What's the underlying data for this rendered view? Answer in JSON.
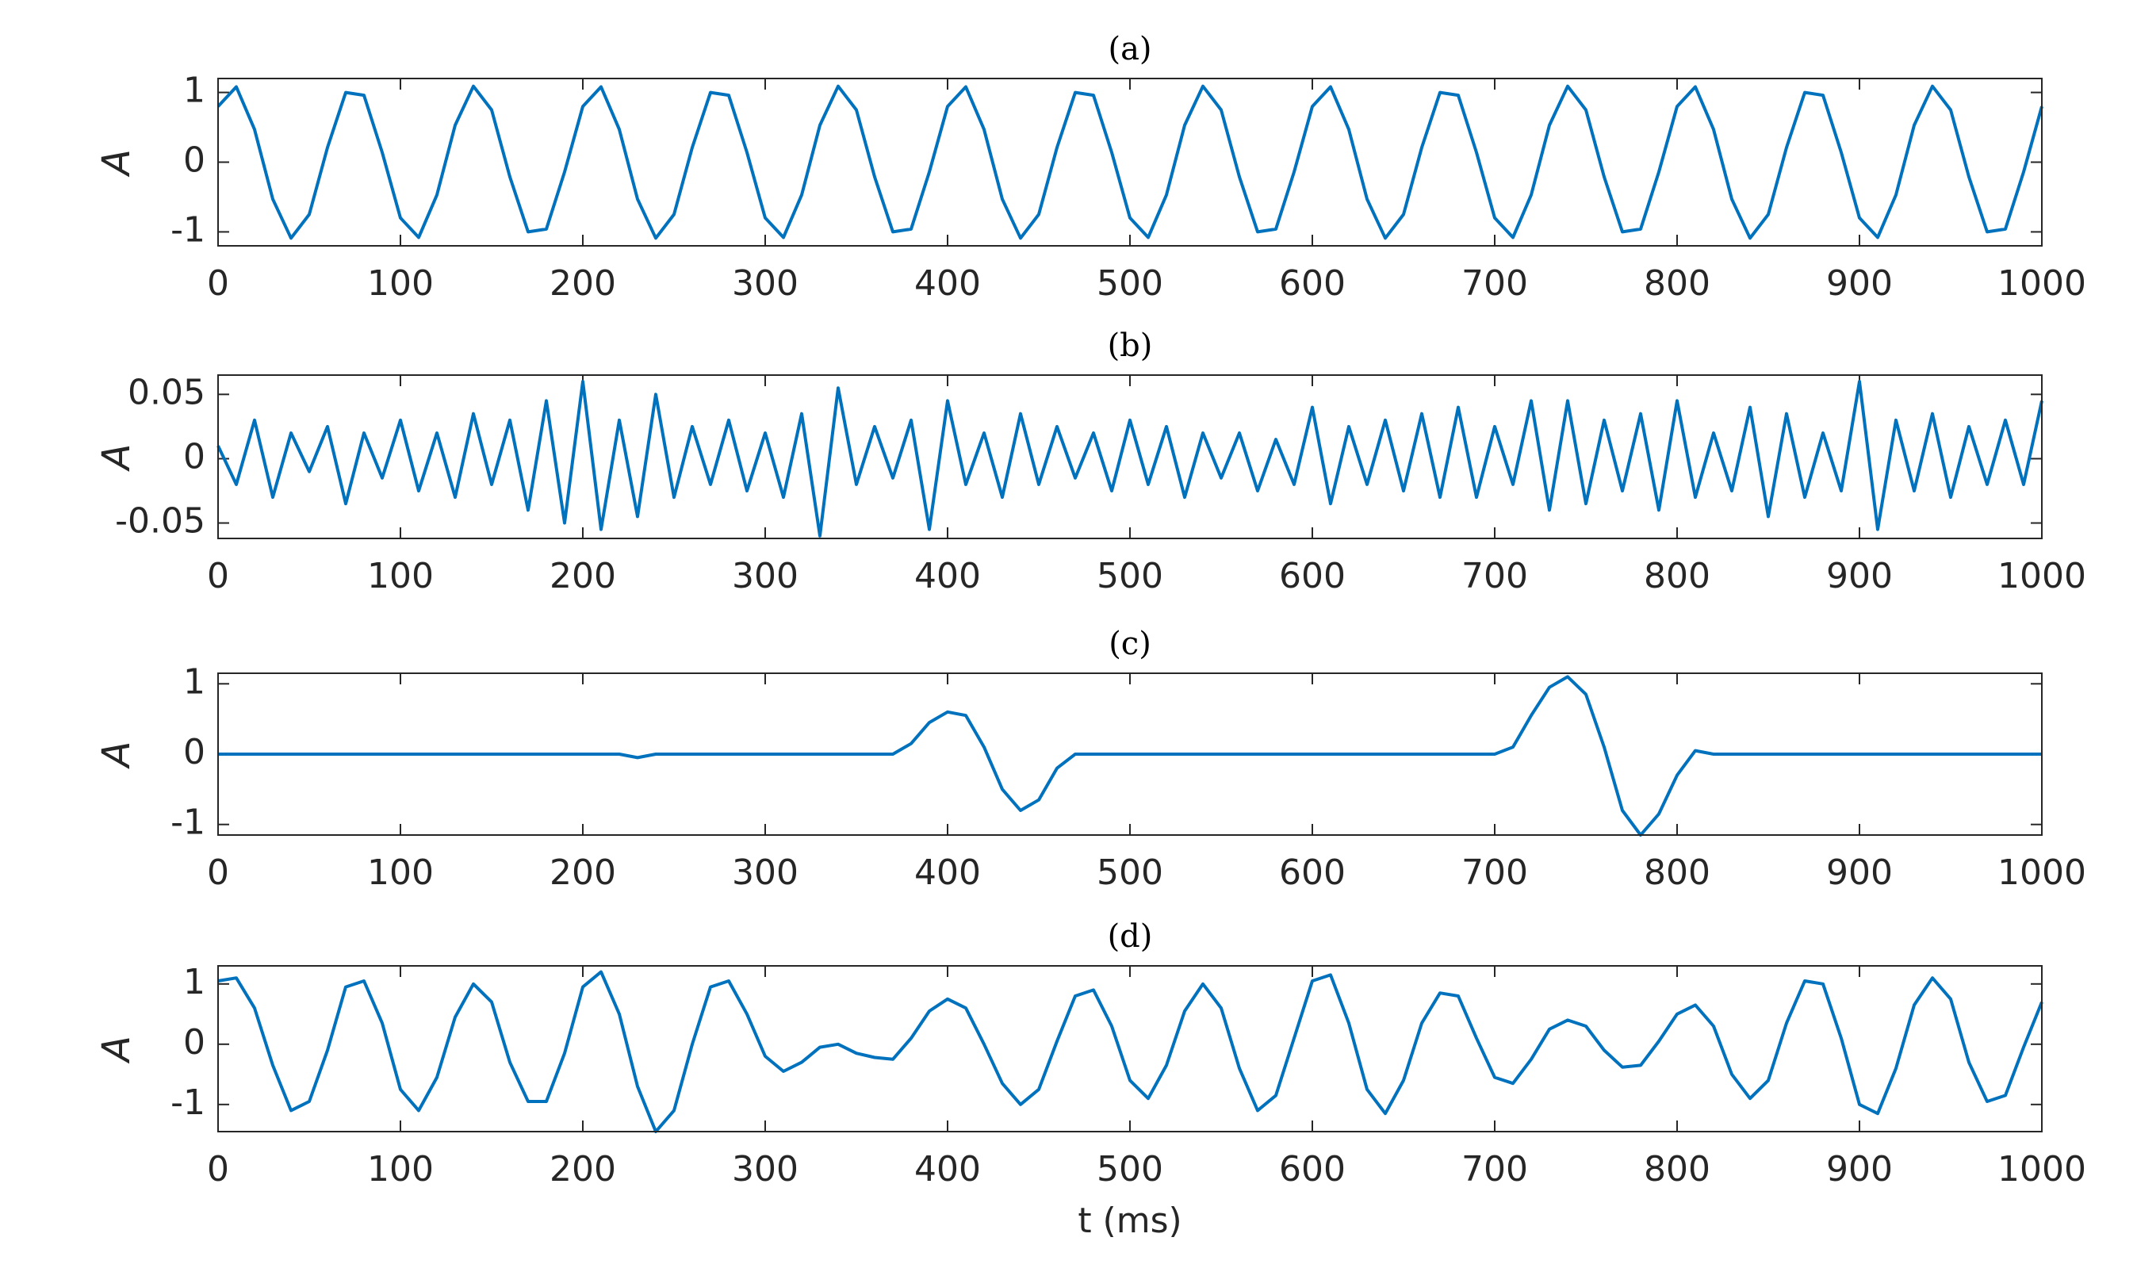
{
  "chart_data": [
    {
      "type": "line",
      "title": "(a)",
      "y_label": "A",
      "xlim": [
        0,
        1000
      ],
      "xticks": [
        0,
        100,
        200,
        300,
        400,
        500,
        600,
        700,
        800,
        900,
        1000
      ],
      "ylim": [
        -1.2,
        1.2
      ],
      "yticks": [
        -1,
        0,
        1
      ],
      "color": "#0072bd",
      "x": [
        0,
        10,
        20,
        30,
        40,
        50,
        60,
        70,
        80,
        90,
        100,
        110,
        120,
        130,
        140,
        150,
        160,
        170,
        180,
        190,
        200,
        210,
        220,
        230,
        240,
        250,
        260,
        270,
        280,
        290,
        300,
        310,
        320,
        330,
        340,
        350,
        360,
        370,
        380,
        390,
        400,
        410,
        420,
        430,
        440,
        450,
        460,
        470,
        480,
        490,
        500,
        510,
        520,
        530,
        540,
        550,
        560,
        570,
        580,
        590,
        600,
        610,
        620,
        630,
        640,
        650,
        660,
        670,
        680,
        690,
        700,
        710,
        720,
        730,
        740,
        750,
        760,
        770,
        780,
        790,
        800,
        810,
        820,
        830,
        840,
        850,
        860,
        870,
        880,
        890,
        900,
        910,
        920,
        930,
        940,
        950,
        960,
        970,
        980,
        990,
        1000
      ],
      "values": [
        0.8,
        1.08,
        0.47,
        -0.53,
        -1.09,
        -0.75,
        0.21,
        1.0,
        0.96,
        0.14,
        -0.8,
        -1.08,
        -0.47,
        0.53,
        1.09,
        0.75,
        -0.21,
        -1.0,
        -0.96,
        -0.14,
        0.8,
        1.08,
        0.47,
        -0.53,
        -1.09,
        -0.75,
        0.21,
        1.0,
        0.96,
        0.14,
        -0.8,
        -1.08,
        -0.47,
        0.53,
        1.09,
        0.75,
        -0.21,
        -1.0,
        -0.96,
        -0.14,
        0.8,
        1.08,
        0.47,
        -0.53,
        -1.09,
        -0.75,
        0.21,
        1.0,
        0.96,
        0.14,
        -0.8,
        -1.08,
        -0.47,
        0.53,
        1.09,
        0.75,
        -0.21,
        -1.0,
        -0.96,
        -0.14,
        0.8,
        1.08,
        0.47,
        -0.53,
        -1.09,
        -0.75,
        0.21,
        1.0,
        0.96,
        0.14,
        -0.8,
        -1.08,
        -0.47,
        0.53,
        1.09,
        0.75,
        -0.21,
        -1.0,
        -0.96,
        -0.14,
        0.8,
        1.08,
        0.47,
        -0.53,
        -1.09,
        -0.75,
        0.21,
        1.0,
        0.96,
        0.14,
        -0.8,
        -1.08,
        -0.47,
        0.53,
        1.09,
        0.75,
        -0.21,
        -1.0,
        -0.96,
        -0.14,
        0.8
      ]
    },
    {
      "type": "line",
      "title": "(b)",
      "y_label": "A",
      "xlim": [
        0,
        1000
      ],
      "xticks": [
        0,
        100,
        200,
        300,
        400,
        500,
        600,
        700,
        800,
        900,
        1000
      ],
      "ylim": [
        -0.062,
        0.065
      ],
      "yticks": [
        -0.05,
        0,
        0.05
      ],
      "color": "#0072bd",
      "x": [
        0,
        10,
        20,
        30,
        40,
        50,
        60,
        70,
        80,
        90,
        100,
        110,
        120,
        130,
        140,
        150,
        160,
        170,
        180,
        190,
        200,
        210,
        220,
        230,
        240,
        250,
        260,
        270,
        280,
        290,
        300,
        310,
        320,
        330,
        340,
        350,
        360,
        370,
        380,
        390,
        400,
        410,
        420,
        430,
        440,
        450,
        460,
        470,
        480,
        490,
        500,
        510,
        520,
        530,
        540,
        550,
        560,
        570,
        580,
        590,
        600,
        610,
        620,
        630,
        640,
        650,
        660,
        670,
        680,
        690,
        700,
        710,
        720,
        730,
        740,
        750,
        760,
        770,
        780,
        790,
        800,
        810,
        820,
        830,
        840,
        850,
        860,
        870,
        880,
        890,
        900,
        910,
        920,
        930,
        940,
        950,
        960,
        970,
        980,
        990,
        1000
      ],
      "values": [
        0.01,
        -0.02,
        0.03,
        -0.03,
        0.02,
        -0.01,
        0.025,
        -0.035,
        0.02,
        -0.015,
        0.03,
        -0.025,
        0.02,
        -0.03,
        0.035,
        -0.02,
        0.03,
        -0.04,
        0.045,
        -0.05,
        0.06,
        -0.055,
        0.03,
        -0.045,
        0.05,
        -0.03,
        0.025,
        -0.02,
        0.03,
        -0.025,
        0.02,
        -0.03,
        0.035,
        -0.06,
        0.055,
        -0.02,
        0.025,
        -0.015,
        0.03,
        -0.055,
        0.045,
        -0.02,
        0.02,
        -0.03,
        0.035,
        -0.02,
        0.025,
        -0.015,
        0.02,
        -0.025,
        0.03,
        -0.02,
        0.025,
        -0.03,
        0.02,
        -0.015,
        0.02,
        -0.025,
        0.015,
        -0.02,
        0.04,
        -0.035,
        0.025,
        -0.02,
        0.03,
        -0.025,
        0.035,
        -0.03,
        0.04,
        -0.03,
        0.025,
        -0.02,
        0.045,
        -0.04,
        0.045,
        -0.035,
        0.03,
        -0.025,
        0.035,
        -0.04,
        0.045,
        -0.03,
        0.02,
        -0.025,
        0.04,
        -0.045,
        0.035,
        -0.03,
        0.02,
        -0.025,
        0.06,
        -0.055,
        0.03,
        -0.025,
        0.035,
        -0.03,
        0.025,
        -0.02,
        0.03,
        -0.02,
        0.045
      ]
    },
    {
      "type": "line",
      "title": "(c)",
      "y_label": "A",
      "xlim": [
        0,
        1000
      ],
      "xticks": [
        0,
        100,
        200,
        300,
        400,
        500,
        600,
        700,
        800,
        900,
        1000
      ],
      "ylim": [
        -1.15,
        1.15
      ],
      "yticks": [
        -1,
        0,
        1
      ],
      "color": "#0072bd",
      "x": [
        0,
        10,
        20,
        30,
        40,
        50,
        60,
        70,
        80,
        90,
        100,
        110,
        120,
        130,
        140,
        150,
        160,
        170,
        180,
        190,
        200,
        210,
        220,
        230,
        240,
        250,
        260,
        270,
        280,
        290,
        300,
        310,
        320,
        330,
        340,
        350,
        360,
        370,
        380,
        390,
        400,
        410,
        420,
        430,
        440,
        450,
        460,
        470,
        480,
        490,
        500,
        510,
        520,
        530,
        540,
        550,
        560,
        570,
        580,
        590,
        600,
        610,
        620,
        630,
        640,
        650,
        660,
        670,
        680,
        690,
        700,
        710,
        720,
        730,
        740,
        750,
        760,
        770,
        780,
        790,
        800,
        810,
        820,
        830,
        840,
        850,
        860,
        870,
        880,
        890,
        900,
        910,
        920,
        930,
        940,
        950,
        960,
        970,
        980,
        990,
        1000
      ],
      "values": [
        0,
        0,
        0,
        0,
        0,
        0,
        0,
        0,
        0,
        0,
        0,
        0,
        0,
        0,
        0,
        0,
        0,
        0,
        0,
        0,
        0,
        0,
        0,
        -0.05,
        0,
        0,
        0,
        0,
        0,
        0,
        0,
        0,
        0,
        0,
        0,
        0,
        0,
        0,
        0.15,
        0.45,
        0.6,
        0.55,
        0.1,
        -0.5,
        -0.8,
        -0.65,
        -0.2,
        0,
        0,
        0,
        0,
        0,
        0,
        0,
        0,
        0,
        0,
        0,
        0,
        0,
        0,
        0,
        0,
        0,
        0,
        0,
        0,
        0,
        0,
        0,
        0,
        0.1,
        0.55,
        0.95,
        1.1,
        0.85,
        0.1,
        -0.8,
        -1.15,
        -0.85,
        -0.3,
        0.05,
        0,
        0,
        0,
        0,
        0,
        0,
        0,
        0,
        0,
        0,
        0,
        0,
        0,
        0,
        0,
        0,
        0,
        0,
        0
      ]
    },
    {
      "type": "line",
      "title": "(d)",
      "y_label": "A",
      "x_label": "t (ms)",
      "xlim": [
        0,
        1000
      ],
      "xticks": [
        0,
        100,
        200,
        300,
        400,
        500,
        600,
        700,
        800,
        900,
        1000
      ],
      "ylim": [
        -1.45,
        1.3
      ],
      "yticks": [
        -1,
        0,
        1
      ],
      "color": "#0072bd",
      "x": [
        0,
        10,
        20,
        30,
        40,
        50,
        60,
        70,
        80,
        90,
        100,
        110,
        120,
        130,
        140,
        150,
        160,
        170,
        180,
        190,
        200,
        210,
        220,
        230,
        240,
        250,
        260,
        270,
        280,
        290,
        300,
        310,
        320,
        330,
        340,
        350,
        360,
        370,
        380,
        390,
        400,
        410,
        420,
        430,
        440,
        450,
        460,
        470,
        480,
        490,
        500,
        510,
        520,
        530,
        540,
        550,
        560,
        570,
        580,
        590,
        600,
        610,
        620,
        630,
        640,
        650,
        660,
        670,
        680,
        690,
        700,
        710,
        720,
        730,
        740,
        750,
        760,
        770,
        780,
        790,
        800,
        810,
        820,
        830,
        840,
        850,
        860,
        870,
        880,
        890,
        900,
        910,
        920,
        930,
        940,
        950,
        960,
        970,
        980,
        990,
        1000
      ],
      "values": [
        1.05,
        1.1,
        0.6,
        -0.35,
        -1.1,
        -0.95,
        -0.1,
        0.95,
        1.05,
        0.35,
        -0.75,
        -1.1,
        -0.55,
        0.45,
        1.0,
        0.7,
        -0.3,
        -0.95,
        -0.95,
        -0.15,
        0.95,
        1.2,
        0.5,
        -0.7,
        -1.45,
        -1.1,
        0.0,
        0.95,
        1.05,
        0.5,
        -0.2,
        -0.45,
        -0.3,
        -0.05,
        0.0,
        -0.15,
        -0.22,
        -0.25,
        0.1,
        0.55,
        0.75,
        0.6,
        0.0,
        -0.65,
        -1.0,
        -0.75,
        0.05,
        0.8,
        0.9,
        0.3,
        -0.6,
        -0.9,
        -0.35,
        0.55,
        1.0,
        0.6,
        -0.4,
        -1.1,
        -0.85,
        0.1,
        1.05,
        1.15,
        0.35,
        -0.75,
        -1.15,
        -0.6,
        0.35,
        0.85,
        0.8,
        0.1,
        -0.55,
        -0.65,
        -0.25,
        0.25,
        0.4,
        0.3,
        -0.1,
        -0.38,
        -0.35,
        0.05,
        0.5,
        0.65,
        0.3,
        -0.5,
        -0.9,
        -0.6,
        0.35,
        1.05,
        1.0,
        0.1,
        -1.0,
        -1.15,
        -0.4,
        0.65,
        1.1,
        0.75,
        -0.3,
        -0.95,
        -0.85,
        -0.05,
        0.7
      ]
    }
  ]
}
